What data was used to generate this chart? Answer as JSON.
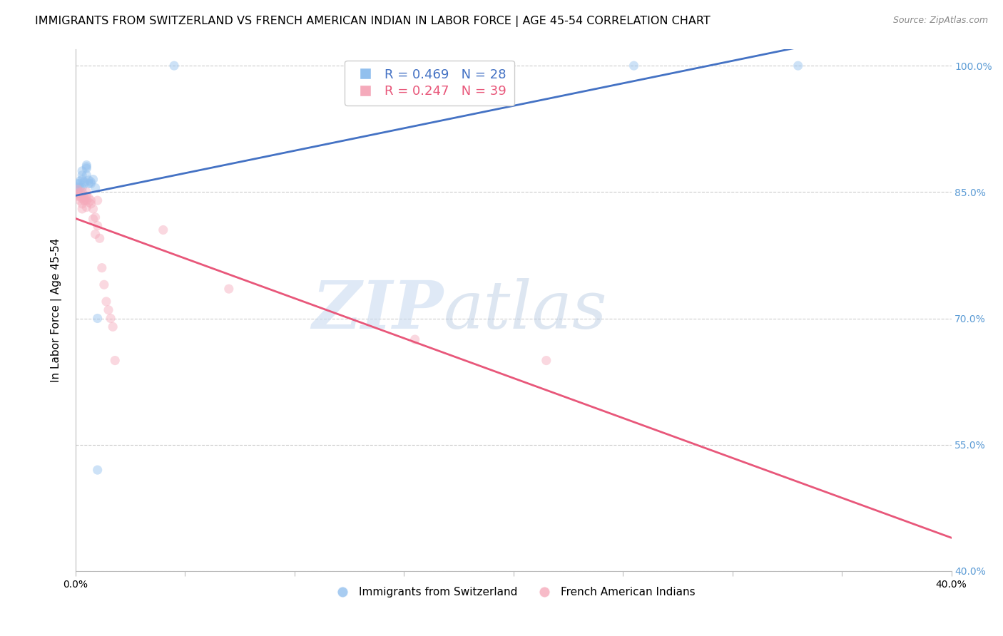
{
  "title": "IMMIGRANTS FROM SWITZERLAND VS FRENCH AMERICAN INDIAN IN LABOR FORCE | AGE 45-54 CORRELATION CHART",
  "source": "Source: ZipAtlas.com",
  "ylabel": "In Labor Force | Age 45-54",
  "xlim": [
    0.0,
    0.4
  ],
  "ylim": [
    0.4,
    1.02
  ],
  "xticks": [
    0.0,
    0.05,
    0.1,
    0.15,
    0.2,
    0.25,
    0.3,
    0.35,
    0.4
  ],
  "yticks": [
    0.4,
    0.55,
    0.7,
    0.85,
    1.0
  ],
  "ytick_labels": [
    "40.0%",
    "55.0%",
    "70.0%",
    "85.0%",
    "100.0%"
  ],
  "blue_color": "#92C0EE",
  "pink_color": "#F5AABB",
  "blue_line_color": "#4472C4",
  "pink_line_color": "#E8577A",
  "right_axis_color": "#5B9BD5",
  "legend_blue_R": "R = 0.469",
  "legend_blue_N": "N = 28",
  "legend_pink_R": "R = 0.247",
  "legend_pink_N": "N = 39",
  "watermark_zip": "ZIP",
  "watermark_atlas": "atlas",
  "blue_scatter_x": [
    0.001,
    0.001,
    0.001,
    0.001,
    0.002,
    0.002,
    0.002,
    0.003,
    0.003,
    0.003,
    0.003,
    0.004,
    0.004,
    0.005,
    0.005,
    0.005,
    0.005,
    0.006,
    0.006,
    0.007,
    0.007,
    0.008,
    0.009,
    0.01,
    0.01,
    0.045,
    0.255,
    0.33
  ],
  "blue_scatter_y": [
    0.848,
    0.852,
    0.856,
    0.86,
    0.86,
    0.863,
    0.855,
    0.875,
    0.87,
    0.865,
    0.855,
    0.86,
    0.862,
    0.87,
    0.878,
    0.88,
    0.882,
    0.86,
    0.864,
    0.86,
    0.862,
    0.865,
    0.855,
    0.7,
    0.52,
    1.0,
    1.0,
    1.0
  ],
  "pink_scatter_x": [
    0.001,
    0.001,
    0.001,
    0.002,
    0.002,
    0.002,
    0.003,
    0.003,
    0.003,
    0.003,
    0.004,
    0.004,
    0.004,
    0.005,
    0.005,
    0.005,
    0.005,
    0.006,
    0.006,
    0.007,
    0.007,
    0.008,
    0.008,
    0.009,
    0.009,
    0.01,
    0.01,
    0.011,
    0.012,
    0.013,
    0.014,
    0.015,
    0.016,
    0.017,
    0.018,
    0.04,
    0.07,
    0.155,
    0.215
  ],
  "pink_scatter_y": [
    0.845,
    0.848,
    0.853,
    0.84,
    0.845,
    0.85,
    0.83,
    0.836,
    0.842,
    0.85,
    0.84,
    0.843,
    0.84,
    0.85,
    0.845,
    0.84,
    0.832,
    0.838,
    0.843,
    0.84,
    0.836,
    0.83,
    0.818,
    0.82,
    0.8,
    0.81,
    0.84,
    0.795,
    0.76,
    0.74,
    0.72,
    0.71,
    0.7,
    0.69,
    0.65,
    0.805,
    0.735,
    0.675,
    0.65
  ],
  "background_color": "#FFFFFF",
  "grid_color": "#CCCCCC",
  "title_fontsize": 11.5,
  "axis_label_fontsize": 11,
  "tick_fontsize": 10,
  "scatter_size": 90,
  "scatter_alpha": 0.45
}
